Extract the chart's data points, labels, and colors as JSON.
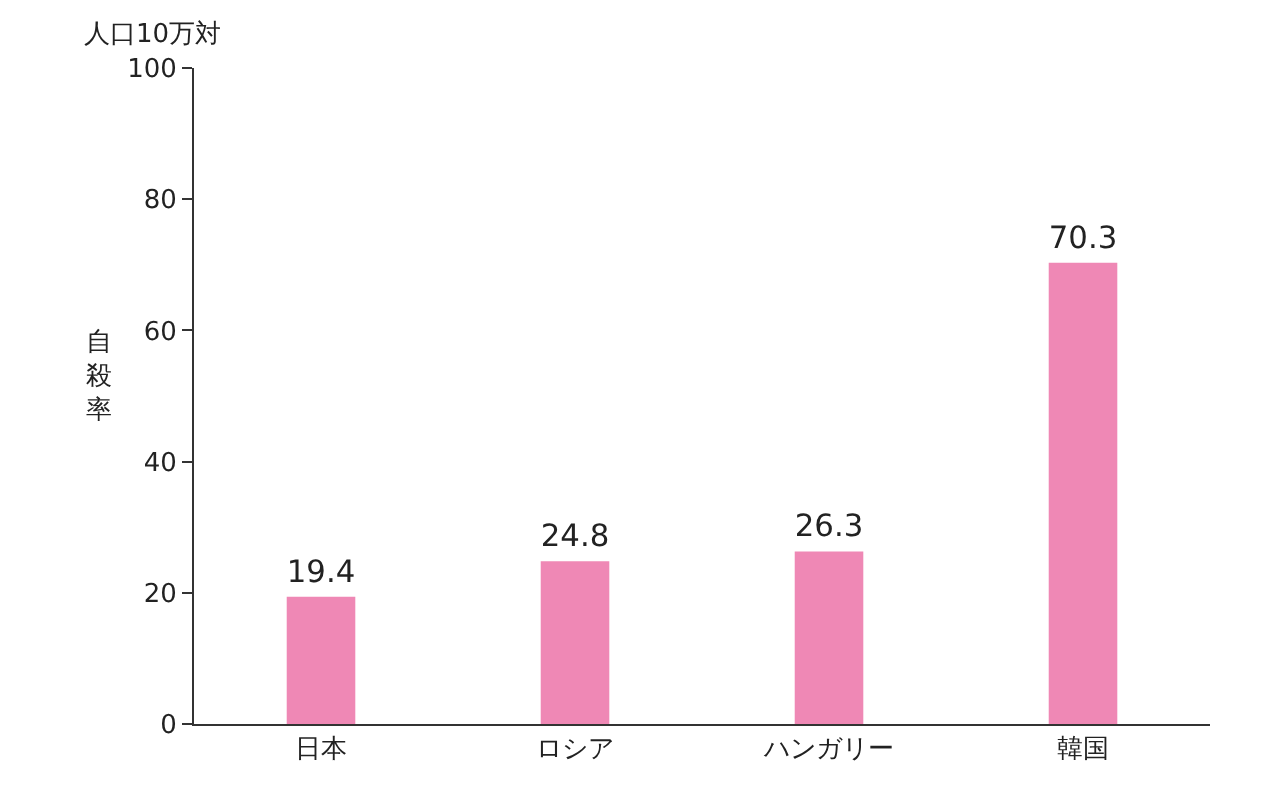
{
  "chart_data": {
    "type": "bar",
    "ylabel": "自殺率",
    "annotations": [
      "人口10万対"
    ],
    "categories": [
      "日本",
      "ロシア",
      "ハンガリー",
      "韓国"
    ],
    "values": [
      19.4,
      24.8,
      26.3,
      70.3
    ],
    "color": "#ef88b5",
    "ylim": [
      0,
      100
    ],
    "yticks": [
      0,
      20,
      40,
      60,
      80,
      100
    ],
    "data_labels": true
  }
}
